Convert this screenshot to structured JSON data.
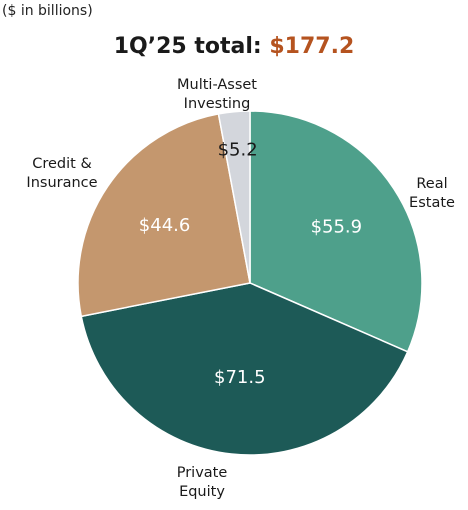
{
  "unit_note": "($ in billions)",
  "title": {
    "prefix": "1Q’25 total: ",
    "total": "$177.2"
  },
  "colors": {
    "total_accent": "#b5531f",
    "slice_edge": "#ffffff"
  },
  "chart_data": {
    "type": "pie",
    "total": 177.2,
    "start": "12 o'clock",
    "direction": "clockwise",
    "slices": [
      {
        "category": [
          "Real",
          "Estate"
        ],
        "value": 55.9,
        "value_label": "$55.9",
        "color": "#4ea08b",
        "value_text_color": "#ffffff"
      },
      {
        "category": [
          "Private",
          "Equity"
        ],
        "value": 71.5,
        "value_label": "$71.5",
        "color": "#1d5a57",
        "value_text_color": "#ffffff"
      },
      {
        "category": [
          "Credit &",
          "Insurance"
        ],
        "value": 44.6,
        "value_label": "$44.6",
        "color": "#c4976e",
        "value_text_color": "#ffffff"
      },
      {
        "category": [
          "Multi-Asset",
          "Investing"
        ],
        "value": 5.2,
        "value_label": "$5.2",
        "color": "#d3d6dc",
        "value_text_color": "#1a1a1a"
      }
    ]
  }
}
